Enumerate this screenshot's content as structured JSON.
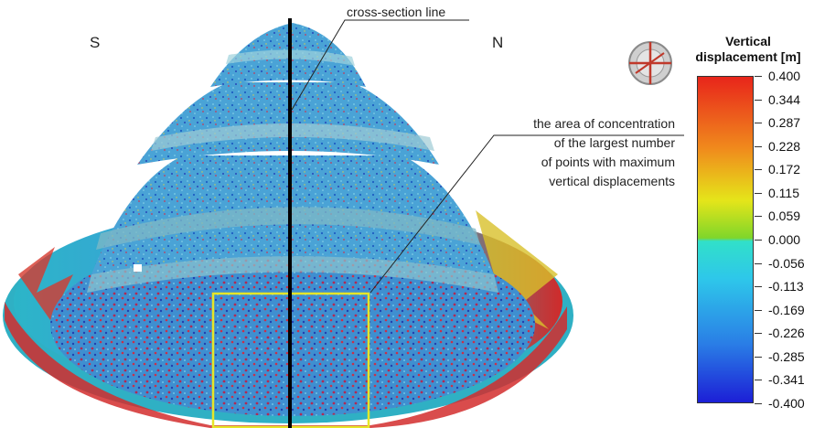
{
  "labels": {
    "south": "S",
    "north": "N",
    "cross_section": "cross-section line",
    "concentration": [
      "the area of concentration",
      "of the largest number",
      "of points with maximum",
      "vertical displacements"
    ]
  },
  "legend": {
    "title_line1": "Vertical",
    "title_line2": "displacement [m]",
    "ticks": [
      "0.400",
      "0.344",
      "0.287",
      "0.228",
      "0.172",
      "0.115",
      "0.059",
      "0.000",
      "-0.056",
      "-0.113",
      "-0.169",
      "-0.226",
      "-0.285",
      "-0.341",
      "-0.400"
    ],
    "colors": {
      "top": "#e8251b",
      "orange": "#f08a1c",
      "yellow": "#e5e51a",
      "green_mid": "#7fd62a",
      "cyan_top": "#31e0c9",
      "cyan": "#2ec7ea",
      "blue_mid": "#2a7ee6",
      "bottom": "#1c1fd6"
    },
    "icon": "compass-icon"
  },
  "highlight_box_color": "#e6e628"
}
